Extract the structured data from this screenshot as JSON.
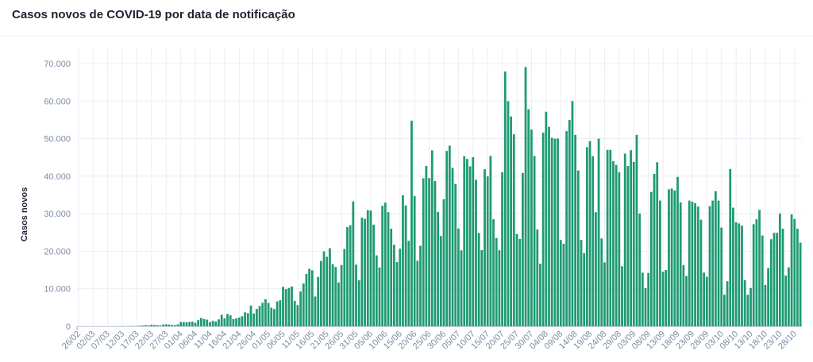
{
  "header": {
    "title": "Casos novos de COVID-19 por data de notificação"
  },
  "colors": {
    "bar": "#1f9a73",
    "grid": "#e9eef5",
    "tick_text": "#7d8ca6"
  },
  "chart_data": {
    "type": "bar",
    "title": "Casos novos de COVID-19 por data de notificação",
    "xlabel": "",
    "ylabel": "Casos novos",
    "ylim": [
      0,
      70000
    ],
    "grid": true,
    "start_date": "26/02",
    "end_date": "30/10",
    "y_ticks": [
      0,
      10000,
      20000,
      30000,
      40000,
      50000,
      60000,
      70000
    ],
    "y_tick_labels": [
      "0",
      "10.000",
      "20.000",
      "30.000",
      "40.000",
      "50.000",
      "60.000",
      "70.000"
    ],
    "x_tick_labels": [
      "26/02",
      "02/03",
      "07/03",
      "12/03",
      "17/03",
      "22/03",
      "27/03",
      "01/04",
      "06/04",
      "11/04",
      "16/04",
      "21/04",
      "26/04",
      "01/05",
      "06/05",
      "11/05",
      "16/05",
      "21/05",
      "26/05",
      "31/05",
      "05/06",
      "10/06",
      "15/06",
      "20/06",
      "25/06",
      "30/06",
      "05/07",
      "10/07",
      "15/07",
      "20/07",
      "25/07",
      "30/07",
      "04/08",
      "09/08",
      "14/08",
      "19/08",
      "24/08",
      "29/08",
      "03/09",
      "08/09",
      "13/09",
      "18/09",
      "23/09",
      "28/09",
      "03/10",
      "08/10",
      "13/10",
      "18/10",
      "23/10",
      "28/10"
    ],
    "x_tick_every_days": 5,
    "values": [
      1,
      0,
      0,
      1,
      0,
      0,
      1,
      0,
      1,
      5,
      6,
      0,
      0,
      5,
      18,
      25,
      21,
      23,
      79,
      34,
      57,
      137,
      193,
      283,
      224,
      418,
      345,
      310,
      232,
      482,
      502,
      487,
      352,
      323,
      500,
      1138,
      1119,
      1074,
      1146,
      1222,
      926,
      1661,
      2210,
      1930,
      1781,
      1089,
      1442,
      1261,
      1832,
      3058,
      2105,
      3257,
      2917,
      1927,
      2089,
      2336,
      2678,
      3735,
      3503,
      5514,
      3379,
      4613,
      5385,
      6276,
      7218,
      6209,
      4970,
      4588,
      6633,
      6935,
      10503,
      9888,
      10222,
      10611,
      6760,
      5632,
      9258,
      11385,
      13944,
      15305,
      14919,
      7938,
      13140,
      17408,
      19951,
      18508,
      20803,
      16508,
      15813,
      11687,
      16324,
      20599,
      26417,
      26928,
      33274,
      16409,
      12247,
      28936,
      28633,
      30925,
      30830,
      27075,
      18912,
      15654,
      32091,
      32913,
      30412,
      25982,
      21704,
      17110,
      20647,
      34918,
      32188,
      22765,
      54771,
      34666,
      17459,
      21432,
      39436,
      42725,
      39483,
      46860,
      38693,
      30476,
      24052,
      33846,
      46712,
      48105,
      42223,
      37923,
      26051,
      20229,
      45305,
      44571,
      42619,
      45048,
      39023,
      24831,
      20286,
      41857,
      39924,
      45403,
      28532,
      23529,
      20257,
      41008,
      67860,
      59961,
      55891,
      51147,
      24578,
      23284,
      40816,
      69074,
      57837,
      52383,
      45392,
      25800,
      16641,
      51603,
      57152,
      53139,
      50230,
      49970,
      50032,
      23000,
      22000,
      52000,
      55000,
      60000,
      51000,
      41500,
      23000,
      19500,
      47700,
      49300,
      45300,
      30400,
      50000,
      23400,
      17000,
      47000,
      47000,
      44000,
      43000,
      41000,
      16000,
      46000,
      42700,
      46900,
      43800,
      51000,
      30000,
      14300,
      10200,
      14200,
      35800,
      40600,
      43700,
      33500,
      14500,
      15000,
      36500,
      36700,
      36200,
      39800,
      33000,
      16300,
      13400,
      33500,
      33200,
      32800,
      31900,
      28400,
      14300,
      13200,
      32000,
      33500,
      36000,
      33500,
      26300,
      8400,
      12000,
      41900,
      31600,
      27700,
      27400,
      26800,
      12300,
      8400,
      10200,
      27200,
      28500,
      31000,
      24200,
      11000,
      15500,
      23200,
      24900,
      24900,
      30000,
      26000,
      13500,
      15700,
      29800,
      28600,
      26000,
      22300
    ]
  }
}
